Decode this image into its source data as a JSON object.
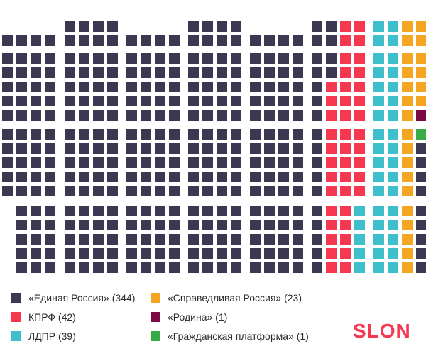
{
  "chart_data": {
    "type": "waffle",
    "title": "",
    "total": 450,
    "series": [
      {
        "name": "«Единая Россия» (344)",
        "party": "Единая Россия",
        "value": 344,
        "color": "#3b3952"
      },
      {
        "name": "КПРФ (42)",
        "party": "КПРФ",
        "value": 42,
        "color": "#f5374f"
      },
      {
        "name": "ЛДПР (39)",
        "party": "ЛДПР",
        "value": 39,
        "color": "#3ebfcb"
      },
      {
        "name": "«Справедливая Россия» (23)",
        "party": "Справедливая Россия",
        "value": 23,
        "color": "#f4a622"
      },
      {
        "name": "«Родина» (1)",
        "party": "Родина",
        "value": 1,
        "color": "#7b0a45"
      },
      {
        "name": "«Гражданская платформа» (1)",
        "party": "Гражданская платформа",
        "value": 1,
        "color": "#3aaa48"
      }
    ],
    "legend_position": "bottom"
  },
  "brand": {
    "logo_text": "SLON",
    "color": "#f5374f"
  }
}
